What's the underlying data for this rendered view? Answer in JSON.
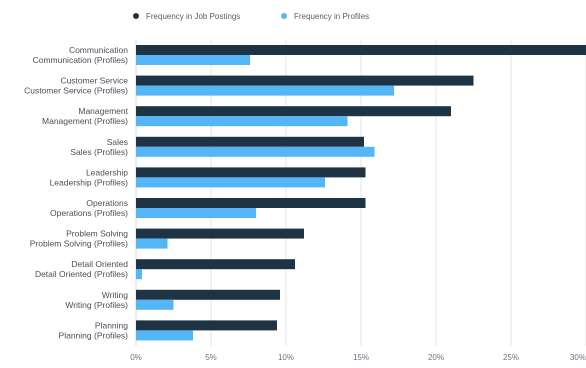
{
  "chart_data": {
    "type": "bar",
    "orientation": "horizontal",
    "categories": [
      [
        "Communication",
        "Communication (Profiles)"
      ],
      [
        "Customer Service",
        "Customer Service (Profiles)"
      ],
      [
        "Management",
        "Management (Profiles)"
      ],
      [
        "Sales",
        "Sales (Profiles)"
      ],
      [
        "Leadership",
        "Leadership (Profiles)"
      ],
      [
        "Operations",
        "Operations (Profiles)"
      ],
      [
        "Problem Solving",
        "Problem Solving (Profiles)"
      ],
      [
        "Detail Oriented",
        "Detail Oriented (Profiles)"
      ],
      [
        "Writing",
        "Writing (Profiles)"
      ],
      [
        "Planning",
        "Planning (Profiles)"
      ]
    ],
    "series": [
      {
        "name": "Frequency in Job Postings",
        "color": "#1e3445",
        "values": [
          30.5,
          22.5,
          21.0,
          15.2,
          15.3,
          15.3,
          11.2,
          10.6,
          9.6,
          9.4
        ]
      },
      {
        "name": "Frequency in Profiles",
        "color": "#55b6f7",
        "values": [
          7.6,
          17.2,
          14.1,
          15.9,
          12.6,
          8.0,
          2.1,
          0.4,
          2.5,
          3.8
        ]
      }
    ],
    "xlim": [
      0,
      30
    ],
    "xticks": [
      0,
      5,
      10,
      15,
      20,
      25,
      30
    ],
    "xtick_labels": [
      "0%",
      "5%",
      "10%",
      "15%",
      "20%",
      "25%",
      "30%"
    ],
    "legend_position": "top-left",
    "grid": "vertical"
  }
}
